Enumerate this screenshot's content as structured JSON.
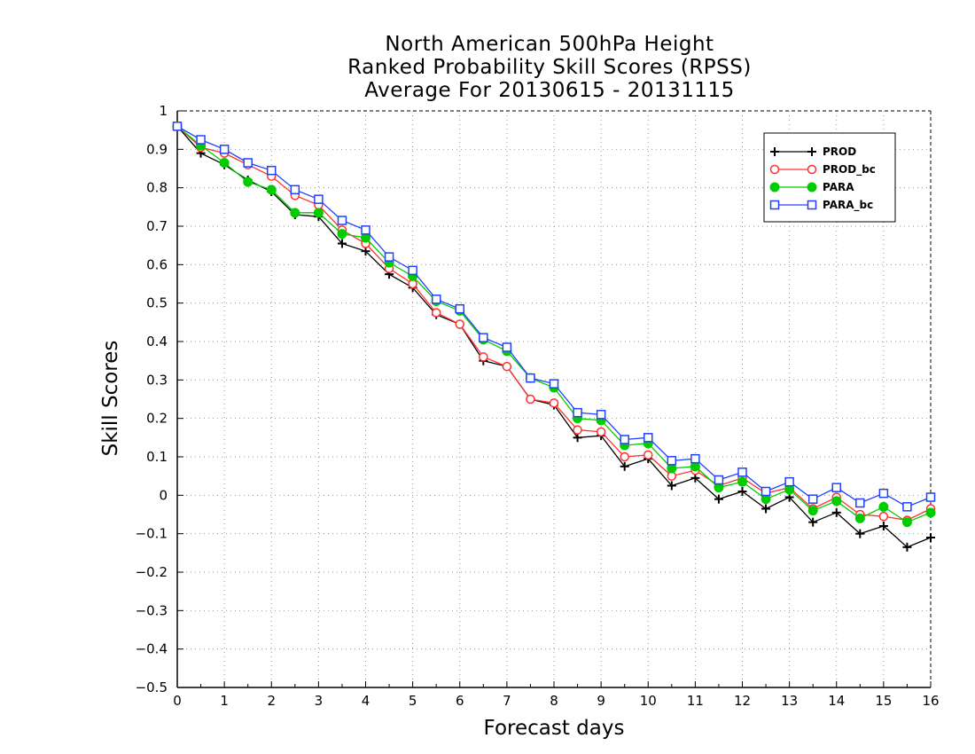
{
  "chart_data": {
    "type": "line",
    "title": [
      "North American 500hPa Height",
      "Ranked Probability Skill Scores (RPSS)",
      "Average For 20130615 - 20131115"
    ],
    "xlabel": "Forecast days",
    "ylabel": "Skill Scores",
    "xlim": [
      0,
      16
    ],
    "ylim": [
      -0.5,
      1
    ],
    "xticks": [
      0,
      1,
      2,
      3,
      4,
      5,
      6,
      7,
      8,
      9,
      10,
      11,
      12,
      13,
      14,
      15,
      16
    ],
    "yticks": [
      -0.5,
      -0.4,
      -0.3,
      -0.2,
      -0.1,
      0,
      0.1,
      0.2,
      0.3,
      0.4,
      0.5,
      0.6,
      0.7,
      0.8,
      0.9,
      1
    ],
    "ytick_labels": [
      "−0.5",
      "−0.4",
      "−0.3",
      "−0.2",
      "−0.1",
      "0",
      "0.1",
      "0.2",
      "0.3",
      "0.4",
      "0.5",
      "0.6",
      "0.7",
      "0.8",
      "0.9",
      "1"
    ],
    "grid": true,
    "legend_position": "top-right",
    "x": [
      0,
      0.5,
      1,
      1.5,
      2,
      2.5,
      3,
      3.5,
      4,
      4.5,
      5,
      5.5,
      6,
      6.5,
      7,
      7.5,
      8,
      8.5,
      9,
      9.5,
      10,
      10.5,
      11,
      11.5,
      12,
      12.5,
      13,
      13.5,
      14,
      14.5,
      15,
      15.5,
      16
    ],
    "series": [
      {
        "name": "PROD",
        "color": "#000000",
        "marker": "plus",
        "values": [
          0.96,
          0.89,
          0.86,
          0.82,
          0.79,
          0.73,
          0.725,
          0.655,
          0.635,
          0.575,
          0.54,
          0.47,
          0.445,
          0.35,
          0.335,
          0.25,
          0.235,
          0.15,
          0.155,
          0.075,
          0.095,
          0.025,
          0.045,
          -0.01,
          0.01,
          -0.035,
          -0.005,
          -0.07,
          -0.045,
          -0.1,
          -0.08,
          -0.135,
          -0.11
        ]
      },
      {
        "name": "PROD_bc",
        "color": "#ff3030",
        "marker": "open-circle",
        "values": [
          0.96,
          0.905,
          0.89,
          0.86,
          0.83,
          0.78,
          0.755,
          0.69,
          0.655,
          0.59,
          0.55,
          0.475,
          0.445,
          0.36,
          0.335,
          0.25,
          0.24,
          0.17,
          0.165,
          0.1,
          0.105,
          0.05,
          0.065,
          0.025,
          0.045,
          0.005,
          0.02,
          -0.035,
          -0.005,
          -0.05,
          -0.055,
          -0.065,
          -0.035
        ]
      },
      {
        "name": "PARA",
        "color": "#00cc00",
        "marker": "filled-circle",
        "values": [
          0.96,
          0.91,
          0.865,
          0.815,
          0.795,
          0.735,
          0.735,
          0.68,
          0.67,
          0.605,
          0.57,
          0.505,
          0.48,
          0.405,
          0.375,
          0.305,
          0.28,
          0.2,
          0.195,
          0.13,
          0.135,
          0.07,
          0.075,
          0.02,
          0.035,
          -0.01,
          0.015,
          -0.04,
          -0.015,
          -0.06,
          -0.03,
          -0.07,
          -0.045
        ]
      },
      {
        "name": "PARA_bc",
        "color": "#2040ff",
        "marker": "open-square",
        "values": [
          0.96,
          0.925,
          0.9,
          0.865,
          0.845,
          0.795,
          0.77,
          0.715,
          0.69,
          0.62,
          0.585,
          0.51,
          0.485,
          0.41,
          0.385,
          0.305,
          0.29,
          0.215,
          0.21,
          0.145,
          0.15,
          0.09,
          0.095,
          0.04,
          0.06,
          0.01,
          0.035,
          -0.01,
          0.02,
          -0.02,
          0.005,
          -0.03,
          -0.005
        ]
      }
    ]
  }
}
